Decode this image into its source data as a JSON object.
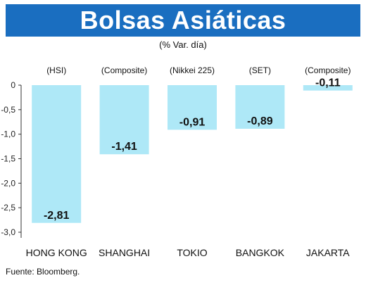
{
  "header": {
    "title": "Bolsas Asiáticas",
    "subtitle": "(% Var. día)"
  },
  "footer": {
    "source": "Fuente: Bloomberg."
  },
  "colors": {
    "banner": "#1a6ec0",
    "bar": "#aee8f7",
    "axis": "#333333"
  },
  "chart_data": {
    "type": "bar",
    "title": "Bolsas Asiáticas",
    "subtitle": "(% Var. día)",
    "categories": [
      "HONG KONG",
      "SHANGHAI",
      "TOKIO",
      "BANGKOK",
      "JAKARTA"
    ],
    "index_labels": [
      "(HSI)",
      "(Composite)",
      "(Nikkei 225)",
      "(SET)",
      "(Composite)"
    ],
    "values": [
      -2.81,
      -1.41,
      -0.91,
      -0.89,
      -0.11
    ],
    "value_labels": [
      "-2,81",
      "-1,41",
      "-0,91",
      "-0,89",
      "-0,11"
    ],
    "y_ticks": [
      0,
      -0.5,
      -1.0,
      -1.5,
      -2.0,
      -2.5,
      -3.0
    ],
    "y_tick_labels": [
      "0",
      "-0,5",
      "-1,0",
      "-1,5",
      "-2,0",
      "-2,5",
      "-3,0"
    ],
    "ylim": [
      -3.0,
      0
    ],
    "xlabel": "",
    "ylabel": "",
    "grid": false,
    "legend": "none"
  }
}
